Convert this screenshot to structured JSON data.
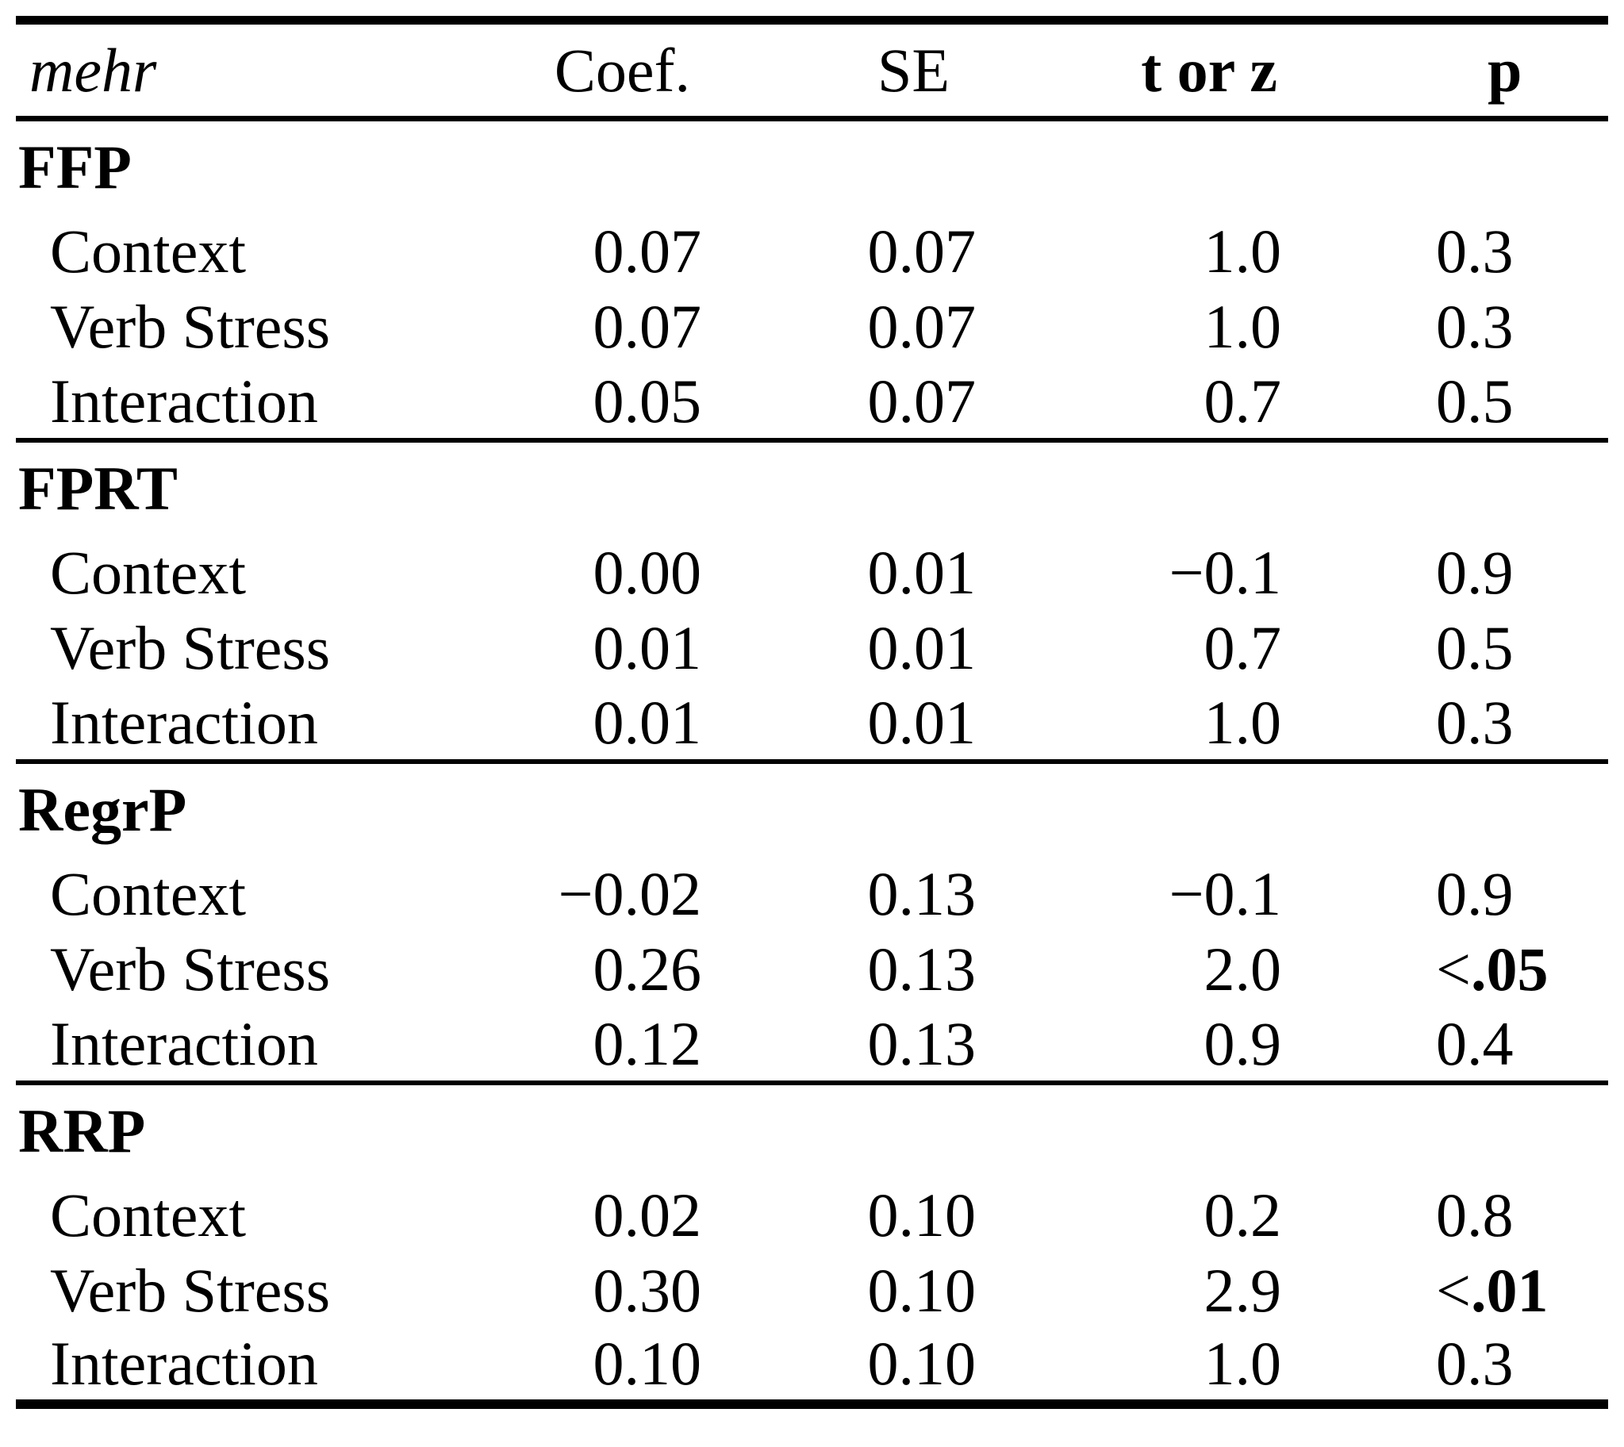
{
  "colors": {
    "background": "#ffffff",
    "text": "#000000",
    "rules": "#000000"
  },
  "table": {
    "title_cell": "mehr",
    "columns": [
      {
        "key": "coef",
        "label": "Coef.",
        "bold": false
      },
      {
        "key": "se",
        "label": "SE",
        "bold": false
      },
      {
        "key": "t_or_z",
        "label": "t or z",
        "bold": true
      },
      {
        "key": "p",
        "label": "p",
        "bold": true
      }
    ],
    "sections": [
      {
        "name": "FFP",
        "rows": [
          {
            "label": "Context",
            "coef": "0.07",
            "se": "0.07",
            "t_or_z": "1.0",
            "p": "0.3",
            "p_sig": false
          },
          {
            "label": "Verb Stress",
            "coef": "0.07",
            "se": "0.07",
            "t_or_z": "1.0",
            "p": "0.3",
            "p_sig": false
          },
          {
            "label": "Interaction",
            "coef": "0.05",
            "se": "0.07",
            "t_or_z": "0.7",
            "p": "0.5",
            "p_sig": false
          }
        ]
      },
      {
        "name": "FPRT",
        "rows": [
          {
            "label": "Context",
            "coef": "0.00",
            "se": "0.01",
            "t_or_z": "−0.1",
            "p": "0.9",
            "p_sig": false
          },
          {
            "label": "Verb Stress",
            "coef": "0.01",
            "se": "0.01",
            "t_or_z": "0.7",
            "p": "0.5",
            "p_sig": false
          },
          {
            "label": "Interaction",
            "coef": "0.01",
            "se": "0.01",
            "t_or_z": "1.0",
            "p": "0.3",
            "p_sig": false
          }
        ]
      },
      {
        "name": "RegrP",
        "rows": [
          {
            "label": "Context",
            "coef": "−0.02",
            "se": "0.13",
            "t_or_z": "−0.1",
            "p": "0.9",
            "p_sig": false
          },
          {
            "label": "Verb Stress",
            "coef": "0.26",
            "se": "0.13",
            "t_or_z": "2.0",
            "p": "<.05",
            "p_sig": true
          },
          {
            "label": "Interaction",
            "coef": "0.12",
            "se": "0.13",
            "t_or_z": "0.9",
            "p": "0.4",
            "p_sig": false
          }
        ]
      },
      {
        "name": "RRP",
        "rows": [
          {
            "label": "Context",
            "coef": "0.02",
            "se": "0.10",
            "t_or_z": "0.2",
            "p": "0.8",
            "p_sig": false
          },
          {
            "label": "Verb Stress",
            "coef": "0.30",
            "se": "0.10",
            "t_or_z": "2.9",
            "p": "<.01",
            "p_sig": true
          },
          {
            "label": "Interaction",
            "coef": "0.10",
            "se": "0.10",
            "t_or_z": "1.0",
            "p": "0.3",
            "p_sig": false
          }
        ]
      }
    ]
  }
}
